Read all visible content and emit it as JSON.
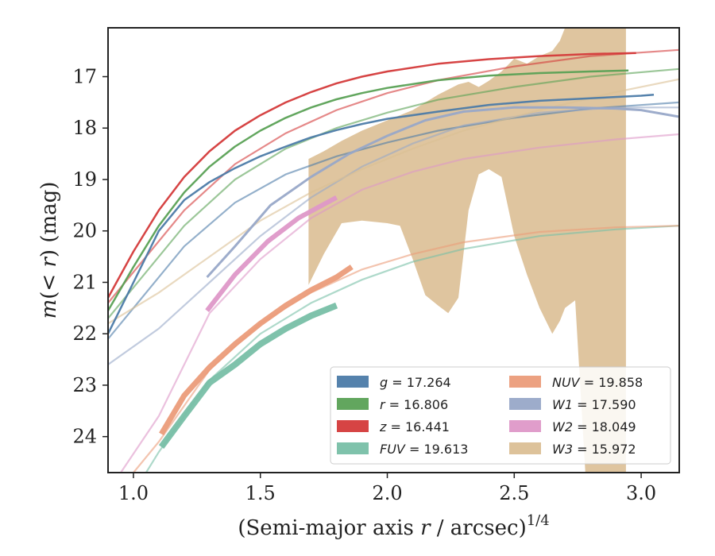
{
  "chart_data": {
    "type": "line",
    "title": "",
    "xlabel": "(Semi-major axis r / arcsec)^1/4",
    "ylabel": "m(< r) (mag)",
    "xlim": [
      0.9,
      3.15
    ],
    "ylim": [
      24.7,
      16.05
    ],
    "y_inverted": true,
    "grid": false,
    "legend_position": "lower-right",
    "xticks": [
      1.0,
      1.5,
      2.0,
      2.5,
      3.0
    ],
    "xtick_labels": [
      "1.0",
      "1.5",
      "2.0",
      "2.5",
      "3.0"
    ],
    "yticks": [
      17,
      18,
      19,
      20,
      21,
      22,
      23,
      24
    ],
    "ytick_labels": [
      "17",
      "18",
      "19",
      "20",
      "21",
      "22",
      "23",
      "24"
    ],
    "series": [
      {
        "name": "g",
        "label_value": "17.264",
        "color": "#4c7ba8",
        "width": 2.5,
        "model_x": [
          0.9,
          1.0,
          1.2,
          1.4,
          1.6,
          1.8,
          2.0,
          2.2,
          2.5,
          2.8,
          3.15
        ],
        "model_y": [
          22.1,
          21.5,
          20.3,
          19.45,
          18.9,
          18.55,
          18.28,
          18.05,
          17.8,
          17.62,
          17.5
        ],
        "measured_x": [
          0.9,
          1.0,
          1.1,
          1.2,
          1.3,
          1.4,
          1.5,
          1.6,
          1.7,
          1.8,
          1.9,
          2.0,
          2.2,
          2.4,
          2.6,
          2.8,
          3.0,
          3.05
        ],
        "measured_y": [
          22.0,
          21.0,
          20.0,
          19.4,
          19.05,
          18.78,
          18.55,
          18.36,
          18.18,
          18.04,
          17.92,
          17.82,
          17.68,
          17.55,
          17.47,
          17.42,
          17.37,
          17.35
        ]
      },
      {
        "name": "r",
        "label_value": "16.806",
        "color": "#5aa155",
        "width": 2.5,
        "model_x": [
          0.9,
          1.0,
          1.2,
          1.4,
          1.6,
          1.8,
          2.0,
          2.2,
          2.5,
          2.8,
          3.15
        ],
        "model_y": [
          21.7,
          21.1,
          19.9,
          19.0,
          18.4,
          18.0,
          17.7,
          17.45,
          17.2,
          17.0,
          16.85
        ],
        "measured_x": [
          0.9,
          1.0,
          1.1,
          1.2,
          1.3,
          1.4,
          1.5,
          1.6,
          1.7,
          1.8,
          1.9,
          2.0,
          2.2,
          2.4,
          2.6,
          2.8,
          2.95
        ],
        "measured_y": [
          21.55,
          20.7,
          19.9,
          19.25,
          18.75,
          18.36,
          18.05,
          17.8,
          17.6,
          17.44,
          17.32,
          17.22,
          17.07,
          16.98,
          16.93,
          16.9,
          16.88
        ]
      },
      {
        "name": "z",
        "label_value": "16.441",
        "color": "#d43a3a",
        "width": 2.5,
        "model_x": [
          0.9,
          1.0,
          1.2,
          1.4,
          1.6,
          1.8,
          2.0,
          2.2,
          2.5,
          2.8,
          3.15
        ],
        "model_y": [
          21.4,
          20.8,
          19.6,
          18.7,
          18.1,
          17.65,
          17.32,
          17.07,
          16.8,
          16.6,
          16.48
        ],
        "measured_x": [
          0.9,
          1.0,
          1.1,
          1.2,
          1.3,
          1.4,
          1.5,
          1.6,
          1.7,
          1.8,
          1.9,
          2.0,
          2.2,
          2.4,
          2.6,
          2.8,
          2.98
        ],
        "measured_y": [
          21.3,
          20.4,
          19.6,
          18.95,
          18.45,
          18.05,
          17.75,
          17.5,
          17.3,
          17.13,
          17.0,
          16.9,
          16.75,
          16.66,
          16.6,
          16.56,
          16.54
        ]
      },
      {
        "name": "FUV",
        "label_value": "19.613",
        "color": "#78bfa7",
        "width": 8,
        "model_x": [
          1.05,
          1.1,
          1.3,
          1.5,
          1.7,
          1.9,
          2.1,
          2.3,
          2.6,
          2.9,
          3.15
        ],
        "model_y": [
          24.7,
          24.3,
          22.9,
          22.0,
          21.4,
          20.95,
          20.6,
          20.35,
          20.1,
          19.97,
          19.9
        ],
        "measured_x": [
          1.11,
          1.2,
          1.3,
          1.4,
          1.5,
          1.6,
          1.7,
          1.8
        ],
        "measured_y": [
          24.2,
          23.6,
          22.95,
          22.6,
          22.2,
          21.9,
          21.65,
          21.45
        ]
      },
      {
        "name": "NUV",
        "label_value": "19.858",
        "color": "#eb9c7a",
        "width": 7,
        "model_x": [
          1.0,
          1.1,
          1.3,
          1.5,
          1.7,
          1.9,
          2.1,
          2.3,
          2.6,
          2.9,
          3.15
        ],
        "model_y": [
          24.7,
          24.1,
          22.7,
          21.8,
          21.2,
          20.75,
          20.45,
          20.22,
          20.02,
          19.93,
          19.9
        ],
        "measured_x": [
          1.11,
          1.2,
          1.3,
          1.4,
          1.5,
          1.6,
          1.7,
          1.8,
          1.86
        ],
        "measured_y": [
          23.95,
          23.2,
          22.65,
          22.2,
          21.8,
          21.45,
          21.15,
          20.9,
          20.7
        ]
      },
      {
        "name": "W1",
        "label_value": "17.590",
        "color": "#98a8c8",
        "width": 3,
        "model_x": [
          0.9,
          1.1,
          1.3,
          1.5,
          1.7,
          1.9,
          2.1,
          2.3,
          2.6,
          2.9,
          3.15
        ],
        "model_y": [
          22.6,
          21.9,
          21.0,
          20.1,
          19.35,
          18.75,
          18.3,
          17.95,
          17.7,
          17.6,
          17.6
        ],
        "measured_x": [
          1.29,
          1.4,
          1.54,
          1.7,
          1.85,
          2.0,
          2.15,
          2.3,
          2.5,
          2.7,
          2.9,
          3.0,
          3.15
        ],
        "measured_y": [
          20.9,
          20.3,
          19.5,
          18.95,
          18.5,
          18.15,
          17.85,
          17.68,
          17.6,
          17.6,
          17.62,
          17.65,
          17.78
        ]
      },
      {
        "name": "W2",
        "label_value": "18.049",
        "color": "#de98c8",
        "width": 6,
        "model_x": [
          0.95,
          1.1,
          1.3,
          1.5,
          1.7,
          1.9,
          2.1,
          2.3,
          2.6,
          2.9,
          3.15
        ],
        "model_y": [
          24.7,
          23.6,
          21.6,
          20.55,
          19.75,
          19.2,
          18.85,
          18.6,
          18.38,
          18.22,
          18.12
        ],
        "measured_x": [
          1.29,
          1.4,
          1.53,
          1.65,
          1.8
        ],
        "measured_y": [
          21.55,
          20.85,
          20.2,
          19.75,
          19.35
        ]
      },
      {
        "name": "W3",
        "label_value": "15.972",
        "color": "#dbbf95",
        "width": 2,
        "model_x": [
          0.9,
          1.1,
          1.3,
          1.5,
          1.7,
          1.9,
          2.1,
          2.3,
          2.6,
          2.9,
          3.15
        ],
        "model_y": [
          21.8,
          21.2,
          20.5,
          19.8,
          19.25,
          18.8,
          18.4,
          18.05,
          17.65,
          17.3,
          17.05
        ],
        "band_x": [
          1.69,
          1.75,
          1.82,
          1.9,
          2.0,
          2.05,
          2.1,
          2.15,
          2.2,
          2.24,
          2.28,
          2.32,
          2.36,
          2.4,
          2.45,
          2.5,
          2.55,
          2.6,
          2.65,
          2.68,
          2.7,
          2.74,
          2.78,
          2.8,
          2.94
        ],
        "band_upper": [
          18.6,
          18.45,
          18.25,
          18.05,
          17.85,
          17.75,
          17.65,
          17.5,
          17.35,
          17.25,
          17.15,
          17.1,
          17.2,
          17.08,
          16.9,
          16.65,
          16.75,
          16.6,
          16.5,
          16.3,
          16.05,
          16.05,
          16.05,
          16.05,
          16.05
        ],
        "band_lower": [
          21.05,
          20.45,
          19.85,
          19.8,
          19.85,
          19.9,
          20.55,
          21.25,
          21.45,
          21.6,
          21.3,
          19.6,
          18.9,
          18.8,
          18.95,
          20.1,
          20.85,
          21.5,
          22.0,
          21.75,
          21.5,
          21.35,
          24.7,
          24.7,
          24.7
        ]
      }
    ],
    "legend": [
      {
        "var": "g",
        "value": "17.264",
        "color": "#4c7ba8"
      },
      {
        "var": "r",
        "value": "16.806",
        "color": "#5aa155"
      },
      {
        "var": "z",
        "value": "16.441",
        "color": "#d43a3a"
      },
      {
        "var": "FUV",
        "value": "19.613",
        "color": "#78bfa7"
      },
      {
        "var": "NUV",
        "value": "19.858",
        "color": "#eb9c7a"
      },
      {
        "var": "W1",
        "value": "17.590",
        "color": "#98a8c8"
      },
      {
        "var": "W2",
        "value": "18.049",
        "color": "#de98c8"
      },
      {
        "var": "W3",
        "value": "15.972",
        "color": "#dbbf95"
      }
    ]
  }
}
